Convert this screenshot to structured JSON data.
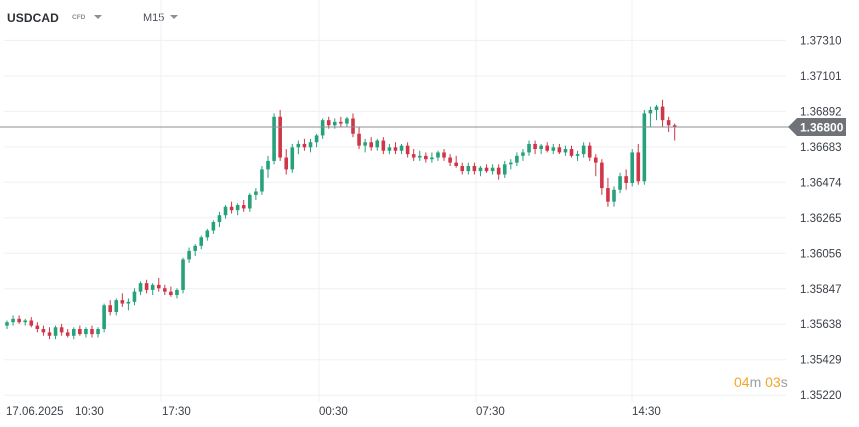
{
  "header": {
    "symbol": "USDCAD",
    "instrument_type": "CFD",
    "timeframe": "M15"
  },
  "price_badge": "1.36800",
  "countdown": {
    "minutes": "04",
    "minutes_unit": "m",
    "seconds": "03",
    "seconds_unit": "s"
  },
  "colors": {
    "up": "#26a17b",
    "down": "#cf3648",
    "grid": "#eef0f3",
    "current_price_line": "#8c8f93",
    "badge_bg": "#6f7276",
    "countdown": "#f5a623"
  },
  "chart_data": {
    "type": "candlestick",
    "symbol": "USDCAD",
    "timeframe": "M15",
    "current_price": 1.368,
    "ylim": [
      1.3518,
      1.3743
    ],
    "y_ticks": [
      "1.37310",
      "1.37101",
      "1.36892",
      "1.36683",
      "1.36474",
      "1.36265",
      "1.36056",
      "1.35847",
      "1.35638",
      "1.35429",
      "1.35220"
    ],
    "x_ticks": [
      "17.06.2025",
      "10:30",
      "17:30",
      "00:30",
      "07:30",
      "14:30"
    ],
    "grid": true,
    "candles": [
      [
        1.3563,
        1.3566,
        1.3561,
        1.3565
      ],
      [
        1.3565,
        1.3569,
        1.3563,
        1.3567
      ],
      [
        1.3567,
        1.3569,
        1.3564,
        1.3565
      ],
      [
        1.3565,
        1.3567,
        1.3563,
        1.3566
      ],
      [
        1.3566,
        1.3568,
        1.3562,
        1.3563
      ],
      [
        1.3563,
        1.3565,
        1.3559,
        1.3561
      ],
      [
        1.3561,
        1.3563,
        1.3557,
        1.3559
      ],
      [
        1.3559,
        1.3562,
        1.3555,
        1.3557
      ],
      [
        1.3557,
        1.3563,
        1.3555,
        1.3562
      ],
      [
        1.3562,
        1.3564,
        1.3557,
        1.3559
      ],
      [
        1.3559,
        1.3561,
        1.3556,
        1.3557
      ],
      [
        1.3557,
        1.3562,
        1.3555,
        1.3561
      ],
      [
        1.3561,
        1.3563,
        1.3557,
        1.3558
      ],
      [
        1.3558,
        1.3562,
        1.3556,
        1.3561
      ],
      [
        1.3561,
        1.3563,
        1.3556,
        1.3558
      ],
      [
        1.3558,
        1.3562,
        1.3556,
        1.3561
      ],
      [
        1.3561,
        1.3576,
        1.3559,
        1.3575
      ],
      [
        1.3575,
        1.3578,
        1.3569,
        1.3571
      ],
      [
        1.3571,
        1.3579,
        1.3569,
        1.3578
      ],
      [
        1.3578,
        1.3582,
        1.3574,
        1.3576
      ],
      [
        1.3576,
        1.3579,
        1.3572,
        1.3577
      ],
      [
        1.3577,
        1.3585,
        1.3575,
        1.3583
      ],
      [
        1.3583,
        1.3589,
        1.3581,
        1.3588
      ],
      [
        1.3588,
        1.359,
        1.3582,
        1.3584
      ],
      [
        1.3584,
        1.3588,
        1.3581,
        1.3587
      ],
      [
        1.3587,
        1.3591,
        1.3583,
        1.3585
      ],
      [
        1.3585,
        1.3587,
        1.3581,
        1.3583
      ],
      [
        1.3583,
        1.3586,
        1.358,
        1.3581
      ],
      [
        1.3581,
        1.3585,
        1.3579,
        1.3584
      ],
      [
        1.3584,
        1.3603,
        1.3582,
        1.3602
      ],
      [
        1.3602,
        1.3609,
        1.36,
        1.3607
      ],
      [
        1.3607,
        1.3611,
        1.3604,
        1.361
      ],
      [
        1.361,
        1.3616,
        1.3608,
        1.3615
      ],
      [
        1.3615,
        1.362,
        1.3613,
        1.3619
      ],
      [
        1.3619,
        1.3625,
        1.3617,
        1.3624
      ],
      [
        1.3624,
        1.363,
        1.3621,
        1.3628
      ],
      [
        1.3628,
        1.3634,
        1.3626,
        1.3633
      ],
      [
        1.3633,
        1.3636,
        1.3629,
        1.3631
      ],
      [
        1.3631,
        1.3635,
        1.3628,
        1.3634
      ],
      [
        1.3634,
        1.3637,
        1.363,
        1.3632
      ],
      [
        1.3632,
        1.3641,
        1.363,
        1.364
      ],
      [
        1.364,
        1.3644,
        1.3637,
        1.3642
      ],
      [
        1.3642,
        1.3657,
        1.364,
        1.3655
      ],
      [
        1.3655,
        1.3663,
        1.365,
        1.366
      ],
      [
        1.366,
        1.3688,
        1.3658,
        1.3686
      ],
      [
        1.3686,
        1.369,
        1.366,
        1.3662
      ],
      [
        1.3662,
        1.3667,
        1.3652,
        1.3655
      ],
      [
        1.3655,
        1.367,
        1.3653,
        1.3668
      ],
      [
        1.3668,
        1.3672,
        1.3664,
        1.367
      ],
      [
        1.367,
        1.3673,
        1.3666,
        1.3668
      ],
      [
        1.3668,
        1.3673,
        1.3665,
        1.3671
      ],
      [
        1.3671,
        1.3676,
        1.3668,
        1.3675
      ],
      [
        1.3675,
        1.3685,
        1.3673,
        1.3684
      ],
      [
        1.3684,
        1.3686,
        1.3679,
        1.3681
      ],
      [
        1.3681,
        1.3685,
        1.3679,
        1.3683
      ],
      [
        1.3683,
        1.3686,
        1.368,
        1.3682
      ],
      [
        1.3682,
        1.3686,
        1.368,
        1.3685
      ],
      [
        1.3685,
        1.3688,
        1.3674,
        1.3676
      ],
      [
        1.3676,
        1.368,
        1.3667,
        1.3669
      ],
      [
        1.3669,
        1.3673,
        1.3665,
        1.3671
      ],
      [
        1.3671,
        1.3674,
        1.3666,
        1.3668
      ],
      [
        1.3668,
        1.3673,
        1.3666,
        1.3672
      ],
      [
        1.3672,
        1.3674,
        1.3664,
        1.3666
      ],
      [
        1.3666,
        1.367,
        1.3664,
        1.3668
      ],
      [
        1.3668,
        1.3671,
        1.3664,
        1.3666
      ],
      [
        1.3666,
        1.367,
        1.3664,
        1.3669
      ],
      [
        1.3669,
        1.3671,
        1.3662,
        1.3664
      ],
      [
        1.3664,
        1.3667,
        1.366,
        1.3662
      ],
      [
        1.3662,
        1.3666,
        1.366,
        1.3663
      ],
      [
        1.3663,
        1.3665,
        1.3659,
        1.3661
      ],
      [
        1.3661,
        1.3665,
        1.3659,
        1.3662
      ],
      [
        1.3662,
        1.3666,
        1.366,
        1.3665
      ],
      [
        1.3665,
        1.3667,
        1.366,
        1.3662
      ],
      [
        1.3662,
        1.3664,
        1.3657,
        1.3659
      ],
      [
        1.3659,
        1.3663,
        1.3656,
        1.3657
      ],
      [
        1.3657,
        1.3659,
        1.3652,
        1.3654
      ],
      [
        1.3654,
        1.3659,
        1.3652,
        1.3657
      ],
      [
        1.3657,
        1.3659,
        1.3652,
        1.3654
      ],
      [
        1.3654,
        1.3657,
        1.3651,
        1.3656
      ],
      [
        1.3656,
        1.3658,
        1.3653,
        1.3654
      ],
      [
        1.3654,
        1.3658,
        1.3652,
        1.3656
      ],
      [
        1.3656,
        1.3658,
        1.3649,
        1.3652
      ],
      [
        1.3652,
        1.366,
        1.365,
        1.3658
      ],
      [
        1.3658,
        1.3661,
        1.3655,
        1.3659
      ],
      [
        1.3659,
        1.3665,
        1.3657,
        1.3663
      ],
      [
        1.3663,
        1.3667,
        1.366,
        1.3665
      ],
      [
        1.3665,
        1.3672,
        1.3663,
        1.367
      ],
      [
        1.367,
        1.3672,
        1.3664,
        1.3667
      ],
      [
        1.3667,
        1.367,
        1.3664,
        1.3669
      ],
      [
        1.3669,
        1.3671,
        1.3665,
        1.3666
      ],
      [
        1.3666,
        1.367,
        1.3664,
        1.3668
      ],
      [
        1.3668,
        1.367,
        1.3664,
        1.3665
      ],
      [
        1.3665,
        1.3669,
        1.3663,
        1.3667
      ],
      [
        1.3667,
        1.3669,
        1.3662,
        1.3663
      ],
      [
        1.3663,
        1.3666,
        1.366,
        1.3664
      ],
      [
        1.3664,
        1.3671,
        1.3662,
        1.3669
      ],
      [
        1.3669,
        1.3671,
        1.366,
        1.3662
      ],
      [
        1.3662,
        1.3664,
        1.3651,
        1.3659
      ],
      [
        1.3659,
        1.3661,
        1.364,
        1.3644
      ],
      [
        1.3644,
        1.365,
        1.3633,
        1.3636
      ],
      [
        1.3636,
        1.3645,
        1.3633,
        1.3643
      ],
      [
        1.3643,
        1.3653,
        1.3641,
        1.3651
      ],
      [
        1.3651,
        1.3655,
        1.3643,
        1.3647
      ],
      [
        1.3647,
        1.3667,
        1.3645,
        1.3665
      ],
      [
        1.3665,
        1.367,
        1.3646,
        1.3648
      ],
      [
        1.3648,
        1.369,
        1.3646,
        1.3688
      ],
      [
        1.3688,
        1.3692,
        1.368,
        1.369
      ],
      [
        1.369,
        1.3693,
        1.3684,
        1.3692
      ],
      [
        1.3692,
        1.3696,
        1.368,
        1.3684
      ],
      [
        1.3684,
        1.3686,
        1.3677,
        1.3681
      ],
      [
        1.3681,
        1.3682,
        1.3672,
        1.368
      ]
    ]
  }
}
